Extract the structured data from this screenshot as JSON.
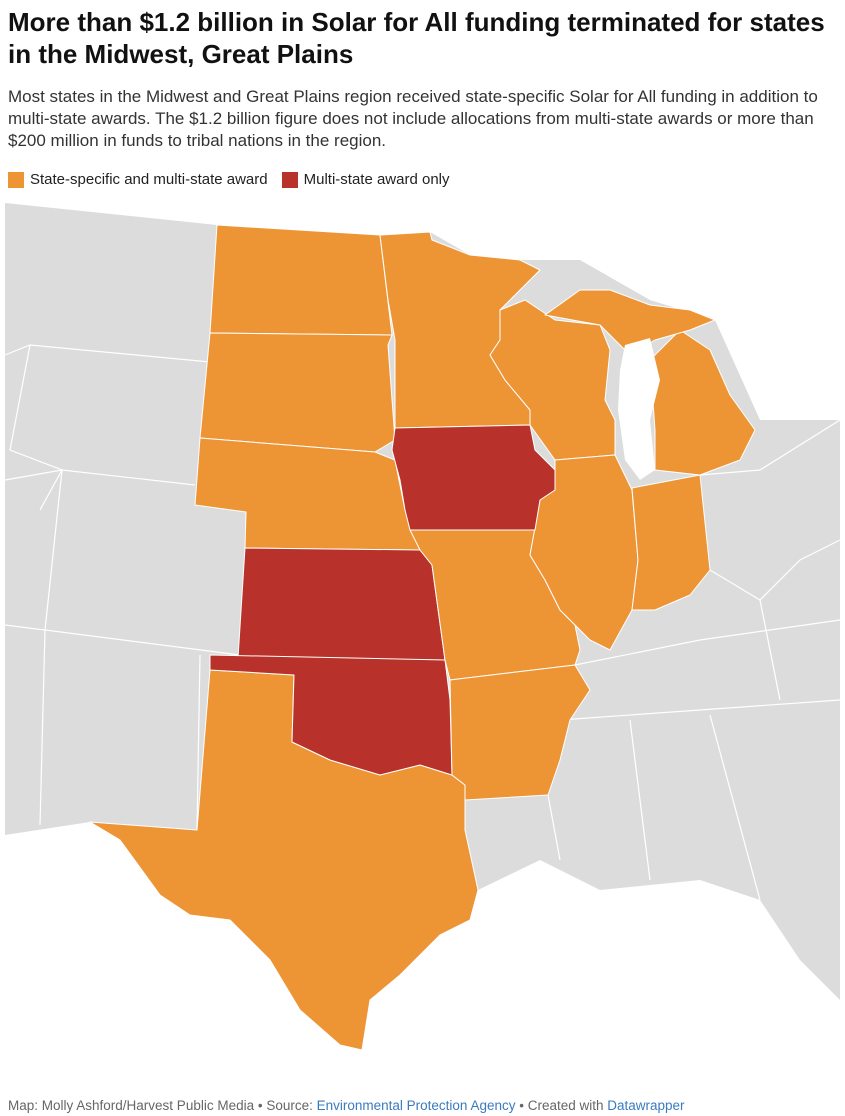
{
  "header": {
    "title": "More than $1.2 billion in Solar for All funding terminated for states in the Midwest, Great Plains",
    "subtitle": "Most states in the Midwest and Great Plains region received state-specific Solar for All funding in addition to multi-state awards. The $1.2 billion figure does not include allocations from multi-state awards or more than $200 million in funds to tribal nations in the region."
  },
  "legend": [
    {
      "label": "State-specific and multi-state award",
      "color": "#ed9435"
    },
    {
      "label": "Multi-state award only",
      "color": "#b8312a"
    }
  ],
  "footer": {
    "credit": "Map: Molly Ashford/Harvest Public Media • Source: ",
    "source": "Environmental Protection Agency",
    "created": " • Created with ",
    "tool": "Datawrapper"
  }
}
